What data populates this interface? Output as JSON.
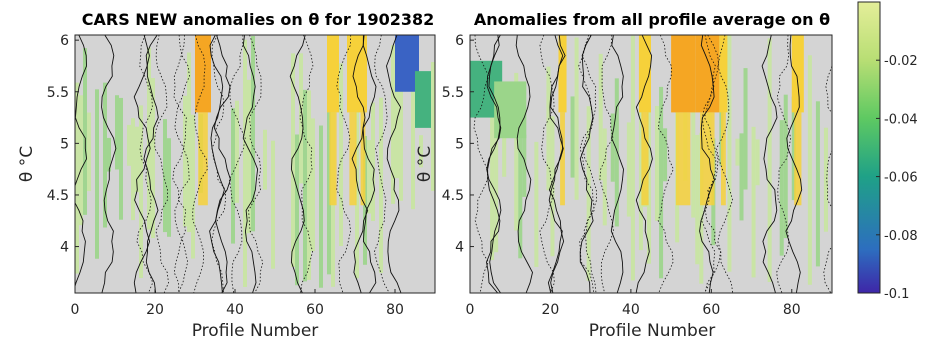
{
  "chart_data": [
    {
      "type": "heatmap",
      "title": "CARS NEW anomalies on θ for 1902382",
      "xlabel": "Profile Number",
      "ylabel": "θ °C",
      "xlim": [
        0,
        90
      ],
      "ylim": [
        3.55,
        6.05
      ],
      "xticks": [
        0,
        20,
        40,
        60,
        80
      ],
      "yticks": [
        4,
        4.5,
        5,
        5.5,
        6
      ],
      "contours": true,
      "warm_columns": [
        {
          "x": 30,
          "width": 4,
          "value": 0.02
        },
        {
          "x": 63,
          "width": 3,
          "value": 0.005
        },
        {
          "x": 68,
          "width": 3,
          "value": 0.01
        },
        {
          "x": 71,
          "width": 2,
          "value": 0.012
        }
      ],
      "cool_patches": [
        {
          "x": 80,
          "width": 6,
          "y": 5.85,
          "value": -0.08
        },
        {
          "x": 85,
          "width": 4,
          "y": 5.5,
          "value": -0.06
        }
      ]
    },
    {
      "type": "heatmap",
      "title": "Anomalies from all profile average on θ",
      "xlabel": "Profile Number",
      "ylabel": "θ °C",
      "xlim": [
        0,
        90
      ],
      "ylim": [
        3.55,
        6.05
      ],
      "xticks": [
        0,
        20,
        40,
        60,
        80
      ],
      "yticks": [
        4,
        4.5,
        5,
        5.5,
        6
      ],
      "contours": true,
      "warm_columns": [
        {
          "x": 22,
          "width": 2,
          "value": 0.005
        },
        {
          "x": 42,
          "width": 3,
          "value": 0.008
        },
        {
          "x": 50,
          "width": 6,
          "value": 0.02
        },
        {
          "x": 56,
          "width": 6,
          "value": 0.018
        },
        {
          "x": 62,
          "width": 2,
          "value": 0.006
        },
        {
          "x": 80,
          "width": 3,
          "value": 0.01
        }
      ],
      "cool_patches": [
        {
          "x": 0,
          "width": 8,
          "y": 5.6,
          "value": -0.05
        },
        {
          "x": 6,
          "width": 8,
          "y": 5.4,
          "value": -0.04
        }
      ]
    }
  ],
  "colorbar": {
    "ticks": [
      -0.02,
      -0.04,
      -0.06,
      -0.08,
      -0.1
    ],
    "range": [
      -0.1,
      0.0
    ],
    "colors": [
      "#3e26a8",
      "#2d6ebf",
      "#1fa187",
      "#5ec962",
      "#b8de74",
      "#e4ee99",
      "#f4e86a",
      "#fbd21c",
      "#f2a81e"
    ]
  },
  "colors": {
    "gray_fill": "#d4d4d4",
    "green_light": "#c8e6a0",
    "green_mid": "#9bd58a",
    "green_dark": "#45b27f",
    "yellow": "#f6d13a",
    "orange": "#f5a623",
    "blue": "#3a63c4"
  }
}
